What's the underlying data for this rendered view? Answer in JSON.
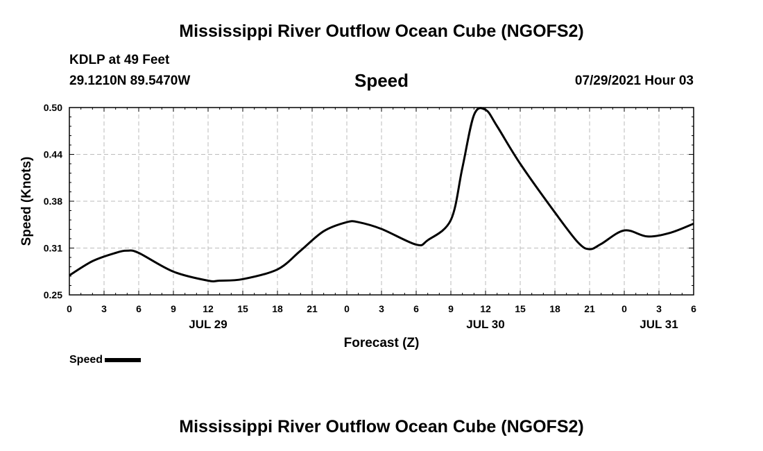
{
  "header": {
    "title": "Mississippi River Outflow Ocean Cube (NGOFS2)",
    "station": "KDLP at 49 Feet",
    "coords": "29.1210N  89.5470W",
    "variable": "Speed",
    "datetime": "07/29/2021 Hour 03"
  },
  "footer": {
    "title": "Mississippi River Outflow Ocean Cube (NGOFS2)"
  },
  "legend": {
    "label": "Speed",
    "color": "#000000"
  },
  "chart_data": {
    "type": "line",
    "title": "Speed",
    "xlabel": "Forecast (Z)",
    "ylabel": "Speed (Knots)",
    "ylim": [
      0.25,
      0.5
    ],
    "xlim": [
      0,
      54
    ],
    "x_unit": "hours from JUL 29 00Z",
    "grid": true,
    "legend_position": "bottom-left",
    "yticks": [
      "0.25",
      "0.31",
      "0.38",
      "0.44",
      "0.50"
    ],
    "ytick_values": [
      0.25,
      0.3125,
      0.375,
      0.4375,
      0.5
    ],
    "xticks": [
      "0",
      "3",
      "6",
      "9",
      "12",
      "15",
      "18",
      "21",
      "0",
      "3",
      "6",
      "9",
      "12",
      "15",
      "18",
      "21",
      "0",
      "3",
      "6"
    ],
    "date_labels": [
      {
        "label": "JUL 29",
        "hour": 12
      },
      {
        "label": "JUL 30",
        "hour": 36
      },
      {
        "label": "JUL 31",
        "hour": 51
      }
    ],
    "series": [
      {
        "name": "Speed",
        "color": "#000000",
        "x": [
          0,
          2,
          4,
          5,
          6,
          9,
          12,
          13,
          15,
          18,
          20,
          22,
          24,
          25,
          27,
          30,
          31,
          33,
          34,
          35,
          36,
          37,
          39,
          42,
          44,
          45,
          46,
          48,
          50,
          52,
          54
        ],
        "y": [
          0.276,
          0.295,
          0.306,
          0.309,
          0.306,
          0.281,
          0.269,
          0.269,
          0.271,
          0.284,
          0.309,
          0.335,
          0.347,
          0.347,
          0.338,
          0.317,
          0.323,
          0.35,
          0.42,
          0.49,
          0.497,
          0.475,
          0.425,
          0.36,
          0.32,
          0.311,
          0.318,
          0.336,
          0.328,
          0.333,
          0.345
        ]
      }
    ]
  }
}
